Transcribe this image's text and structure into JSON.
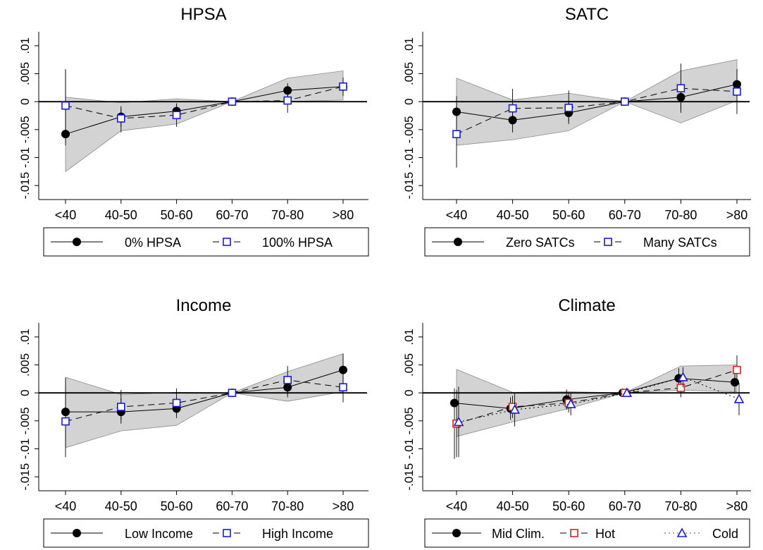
{
  "chart_data": [
    {
      "type": "line",
      "title": "HPSA",
      "categories": [
        "<40",
        "40-50",
        "50-60",
        "60-70",
        "70-80",
        ">80"
      ],
      "ytick_labels": [
        "-.015",
        "-.01",
        "-.005",
        "0",
        ".005",
        ".01"
      ],
      "ylim": [
        -0.0175,
        0.0125
      ],
      "grid": false,
      "legend_position": "bottom",
      "confidence_band": {
        "lower": [
          -0.0125,
          -0.0052,
          -0.004,
          0,
          0.0,
          0.0003
        ],
        "upper": [
          0.0008,
          -0.0002,
          0.0005,
          0,
          0.0042,
          0.0055
        ]
      },
      "series": [
        {
          "name": "0% HPSA",
          "marker": "circle",
          "color": "#000000",
          "dash": "solid",
          "values": [
            -0.0058,
            -0.0027,
            -0.0017,
            0,
            0.002,
            0.0027
          ],
          "ci_low": [
            -0.0078,
            -0.0045,
            -0.003,
            0,
            0.0006,
            0.0015
          ],
          "ci_high": [
            0.0057,
            -0.0012,
            -0.0003,
            0,
            0.0033,
            0.004
          ]
        },
        {
          "name": "100% HPSA",
          "marker": "square",
          "color": "#1a1adb",
          "dash": "dashed",
          "values": [
            -0.0007,
            -0.003,
            -0.0024,
            0,
            0.0002,
            0.0027
          ],
          "ci_low": [
            -0.0072,
            -0.0055,
            -0.0045,
            0,
            -0.002,
            0.001
          ],
          "ci_high": [
            0.0058,
            -0.0008,
            -0.0005,
            0,
            0.0022,
            0.0043
          ]
        }
      ]
    },
    {
      "type": "line",
      "title": "SATC",
      "categories": [
        "<40",
        "40-50",
        "50-60",
        "60-70",
        "70-80",
        ">80"
      ],
      "ytick_labels": [
        "-.015",
        "-.01",
        "-.005",
        "0",
        ".005",
        ".01"
      ],
      "ylim": [
        -0.0175,
        0.0125
      ],
      "grid": false,
      "legend_position": "bottom",
      "confidence_band": {
        "lower": [
          -0.0078,
          -0.0068,
          -0.0052,
          0,
          -0.0038,
          0.0002
        ],
        "upper": [
          0.0042,
          0.0003,
          0.0015,
          0,
          0.0055,
          0.0075
        ]
      },
      "series": [
        {
          "name": "Zero SATCs",
          "marker": "circle",
          "color": "#000000",
          "dash": "solid",
          "values": [
            -0.0018,
            -0.0033,
            -0.002,
            0,
            0.0008,
            0.0031
          ],
          "ci_low": [
            -0.0045,
            -0.0055,
            -0.004,
            0,
            -0.0015,
            0.0005
          ],
          "ci_high": [
            0.001,
            -0.001,
            0.0002,
            0,
            0.0028,
            0.0058
          ]
        },
        {
          "name": "Many SATCs",
          "marker": "square",
          "color": "#1a1adb",
          "dash": "dashed",
          "values": [
            -0.0058,
            -0.0012,
            -0.0011,
            0,
            0.0024,
            0.0018
          ],
          "ci_low": [
            -0.0118,
            -0.0038,
            -0.0035,
            0,
            -0.002,
            -0.0022
          ],
          "ci_high": [
            0.0003,
            0.0023,
            0.002,
            0,
            0.0068,
            0.0058
          ]
        }
      ]
    },
    {
      "type": "line",
      "title": "Income",
      "categories": [
        "<40",
        "40-50",
        "50-60",
        "60-70",
        "70-80",
        ">80"
      ],
      "ytick_labels": [
        "-.015",
        "-.01",
        "-.005",
        "0",
        ".005",
        ".01"
      ],
      "ylim": [
        -0.0175,
        0.0125
      ],
      "grid": false,
      "legend_position": "bottom",
      "confidence_band": {
        "lower": [
          -0.0098,
          -0.0068,
          -0.0058,
          0,
          -0.0015,
          0.0002
        ],
        "upper": [
          0.0028,
          -0.0003,
          0.0001,
          0,
          0.0038,
          0.007
        ]
      },
      "series": [
        {
          "name": "Low Income",
          "marker": "circle",
          "color": "#000000",
          "dash": "solid",
          "values": [
            -0.0034,
            -0.0034,
            -0.0028,
            0,
            0.001,
            0.0041
          ],
          "ci_low": [
            -0.0095,
            -0.0055,
            -0.0045,
            0,
            -0.0008,
            0.0012
          ],
          "ci_high": [
            0.0027,
            -0.001,
            -0.0008,
            0,
            0.0028,
            0.007
          ]
        },
        {
          "name": "High Income",
          "marker": "square",
          "color": "#1a1adb",
          "dash": "dashed",
          "values": [
            -0.0051,
            -0.0025,
            -0.0018,
            0,
            0.0023,
            0.001
          ],
          "ci_low": [
            -0.0115,
            -0.0048,
            -0.0038,
            0,
            -0.0003,
            -0.0017
          ],
          "ci_high": [
            0.0013,
            0.0005,
            0.0008,
            0,
            0.0048,
            0.0037
          ]
        }
      ]
    },
    {
      "type": "line",
      "title": "Climate",
      "categories": [
        "<40",
        "40-50",
        "50-60",
        "60-70",
        "70-80",
        ">80"
      ],
      "ytick_labels": [
        "-.015",
        "-.01",
        "-.005",
        "0",
        ".005",
        ".01"
      ],
      "ylim": [
        -0.0175,
        0.0125
      ],
      "grid": false,
      "legend_position": "bottom",
      "confidence_band": {
        "lower": [
          -0.0078,
          -0.0052,
          -0.0028,
          0,
          0.0005,
          0.0002
        ],
        "upper": [
          0.0042,
          0.0001,
          0.0002,
          0,
          0.0048,
          0.005
        ]
      },
      "series": [
        {
          "name": "Mid Clim.",
          "marker": "circle",
          "color": "#000000",
          "dash": "solid",
          "values": [
            -0.0018,
            -0.0028,
            -0.0012,
            0,
            0.0026,
            0.0019
          ],
          "ci_low": [
            -0.0118,
            -0.0048,
            -0.003,
            0,
            0.0008,
            0.0002
          ],
          "ci_high": [
            0.0008,
            -0.0008,
            0.0006,
            0,
            0.0044,
            0.0036
          ]
        },
        {
          "name": "Hot",
          "marker": "square",
          "color": "#e02020",
          "dash": "dashed",
          "values": [
            -0.0055,
            -0.0025,
            -0.0018,
            0,
            0.0009,
            0.0041
          ],
          "ci_low": [
            -0.0115,
            -0.0045,
            -0.0035,
            0,
            -0.0008,
            0.0015
          ],
          "ci_high": [
            0.0005,
            -0.0005,
            -0.0001,
            0,
            0.0026,
            0.0067
          ]
        },
        {
          "name": "Cold",
          "marker": "triangle",
          "color": "#1a1adb",
          "dash": "dotted",
          "values": [
            -0.0052,
            -0.003,
            -0.002,
            0,
            0.0028,
            -0.0011
          ],
          "ci_low": [
            -0.0115,
            -0.006,
            -0.004,
            0,
            0.001,
            -0.004
          ],
          "ci_high": [
            0.0011,
            0.0,
            0.0,
            0,
            0.0046,
            0.0018
          ]
        }
      ]
    }
  ]
}
